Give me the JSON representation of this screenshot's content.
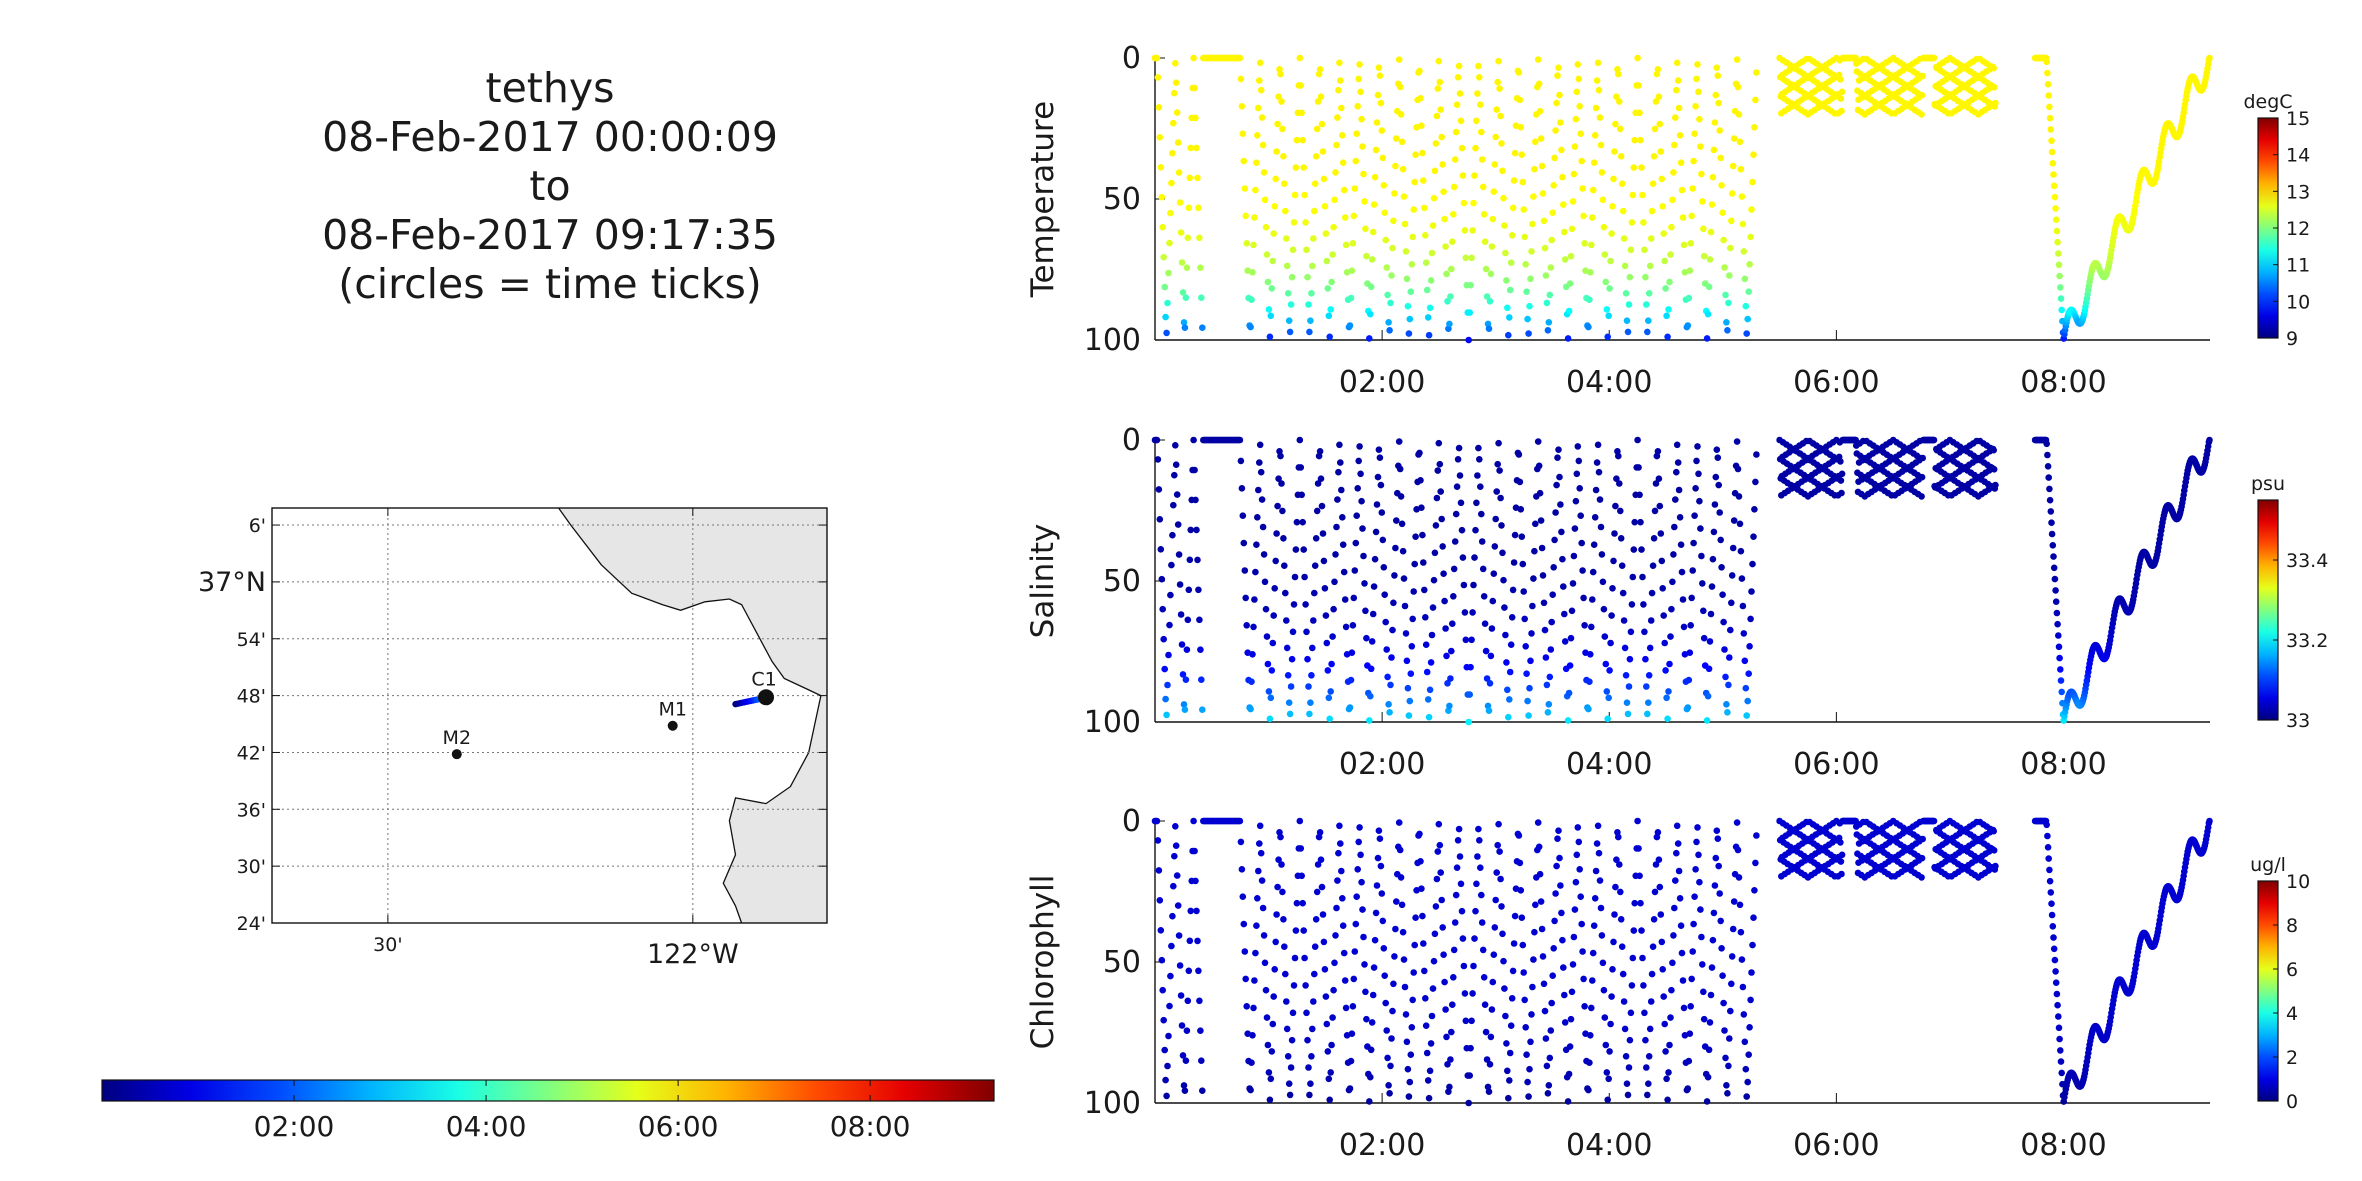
{
  "title": {
    "lines": [
      "tethys",
      "08-Feb-2017 00:00:09",
      "to",
      "08-Feb-2017 09:17:35",
      "(circles = time ticks)"
    ]
  },
  "map": {
    "lat_ticks": [
      "6'",
      "37°N",
      "54'",
      "48'",
      "42'",
      "36'",
      "30'",
      "24'"
    ],
    "lon_ticks": [
      "30'",
      "122°W"
    ],
    "stations": [
      {
        "name": "M2",
        "lon": -122.387,
        "lat": 36.697
      },
      {
        "name": "M1",
        "lon": -122.033,
        "lat": 36.747
      },
      {
        "name": "C1",
        "lon": -121.88,
        "lat": 36.797
      }
    ],
    "land_color": "#e6e6e6",
    "grid": true
  },
  "time_colorbar": {
    "ticks": [
      "02:00",
      "04:00",
      "06:00",
      "08:00"
    ],
    "colormap": "jet"
  },
  "chart_data": [
    {
      "type": "scatter",
      "title": "",
      "ylabel": "Temperature",
      "xlabel": "",
      "x_range_hours": [
        0.0,
        9.29
      ],
      "x_ticks": [
        "02:00",
        "04:00",
        "06:00",
        "08:00"
      ],
      "ylim": [
        100,
        0
      ],
      "y_ticks": [
        "0",
        "50",
        "100"
      ],
      "colorbar": {
        "unit": "degC",
        "range": [
          9,
          15
        ],
        "ticks": [
          "9",
          "10",
          "11",
          "12",
          "13",
          "14",
          "15"
        ]
      },
      "surface_value": 12.8,
      "deep_value": 9.8,
      "profile_segments": [
        {
          "start_hour": 0.0,
          "end_hour": 5.3,
          "depth_top": 0,
          "depth_bottom": 100,
          "description": "sawtooth yo-yo profiles, approx 29 dives"
        },
        {
          "start_hour": 5.5,
          "end_hour": 7.4,
          "depth_top": 0,
          "depth_bottom": 20,
          "description": "shallow yo-yo box"
        },
        {
          "start_hour": 7.75,
          "end_hour": 9.29,
          "depth_top": 0,
          "depth_bottom": 100,
          "description": "single dive then stepped ascent"
        }
      ]
    },
    {
      "type": "scatter",
      "title": "",
      "ylabel": "Salinity",
      "xlabel": "",
      "x_range_hours": [
        0.0,
        9.29
      ],
      "x_ticks": [
        "02:00",
        "04:00",
        "06:00",
        "08:00"
      ],
      "ylim": [
        100,
        0
      ],
      "y_ticks": [
        "0",
        "50",
        "100"
      ],
      "colorbar": {
        "unit": "psu",
        "range": [
          33.0,
          33.55
        ],
        "ticks": [
          "33",
          "33.2",
          "33.4"
        ]
      },
      "surface_value": 33.02,
      "deep_value": 33.2
    },
    {
      "type": "scatter",
      "title": "",
      "ylabel": "Chlorophyll",
      "xlabel": "",
      "x_range_hours": [
        0.0,
        9.29
      ],
      "x_ticks": [
        "02:00",
        "04:00",
        "06:00",
        "08:00"
      ],
      "ylim": [
        100,
        0
      ],
      "y_ticks": [
        "0",
        "50",
        "100"
      ],
      "colorbar": {
        "unit": "ug/l",
        "range": [
          0,
          10
        ],
        "ticks": [
          "0",
          "2",
          "4",
          "6",
          "8",
          "10"
        ]
      },
      "surface_value": 0.8,
      "deep_value": 0.3
    }
  ]
}
